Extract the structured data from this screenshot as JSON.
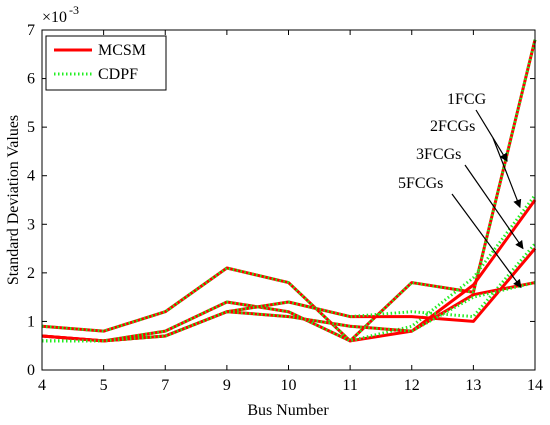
{
  "chart_data": {
    "type": "line",
    "xlabel": "Bus Number",
    "ylabel": "Standard Deviation Values",
    "y_exponent_label": "×10",
    "y_exponent_power": "-3",
    "categories": [
      "4",
      "5",
      "7",
      "9",
      "10",
      "11",
      "12",
      "13",
      "14"
    ],
    "ylim": [
      0,
      7
    ],
    "yticks": [
      "0",
      "1",
      "2",
      "3",
      "4",
      "5",
      "6",
      "7"
    ],
    "grid": false,
    "legend": {
      "placement": "top-left",
      "entries": [
        {
          "label": "MCSM",
          "color": "#ff0000",
          "style": "solid"
        },
        {
          "label": "CDPF",
          "color": "#22ee22",
          "style": "dotted"
        }
      ]
    },
    "groups": [
      {
        "annotation": "1FCG",
        "MCSM": [
          0.9,
          0.8,
          1.2,
          2.1,
          1.8,
          0.6,
          1.8,
          1.6,
          6.8
        ],
        "CDPF": [
          0.9,
          0.8,
          1.2,
          2.1,
          1.8,
          0.6,
          1.8,
          1.6,
          6.8
        ]
      },
      {
        "annotation": "2FCGs",
        "MCSM": [
          0.7,
          0.6,
          0.8,
          1.4,
          1.2,
          0.6,
          0.8,
          1.75,
          3.5
        ],
        "CDPF": [
          0.6,
          0.6,
          0.8,
          1.4,
          1.2,
          0.6,
          0.9,
          1.9,
          3.6
        ]
      },
      {
        "annotation": "3FCGs",
        "MCSM": [
          0.7,
          0.6,
          0.7,
          1.2,
          1.4,
          1.1,
          1.1,
          1.0,
          2.5
        ],
        "CDPF": [
          0.6,
          0.6,
          0.7,
          1.2,
          1.4,
          1.1,
          1.2,
          1.1,
          2.6
        ]
      },
      {
        "annotation": "5FCGs",
        "MCSM": [
          0.7,
          0.6,
          0.7,
          1.2,
          1.1,
          0.9,
          0.8,
          1.55,
          1.8
        ],
        "CDPF": [
          0.6,
          0.6,
          0.7,
          1.2,
          1.1,
          0.9,
          0.8,
          1.5,
          1.8
        ]
      }
    ]
  }
}
